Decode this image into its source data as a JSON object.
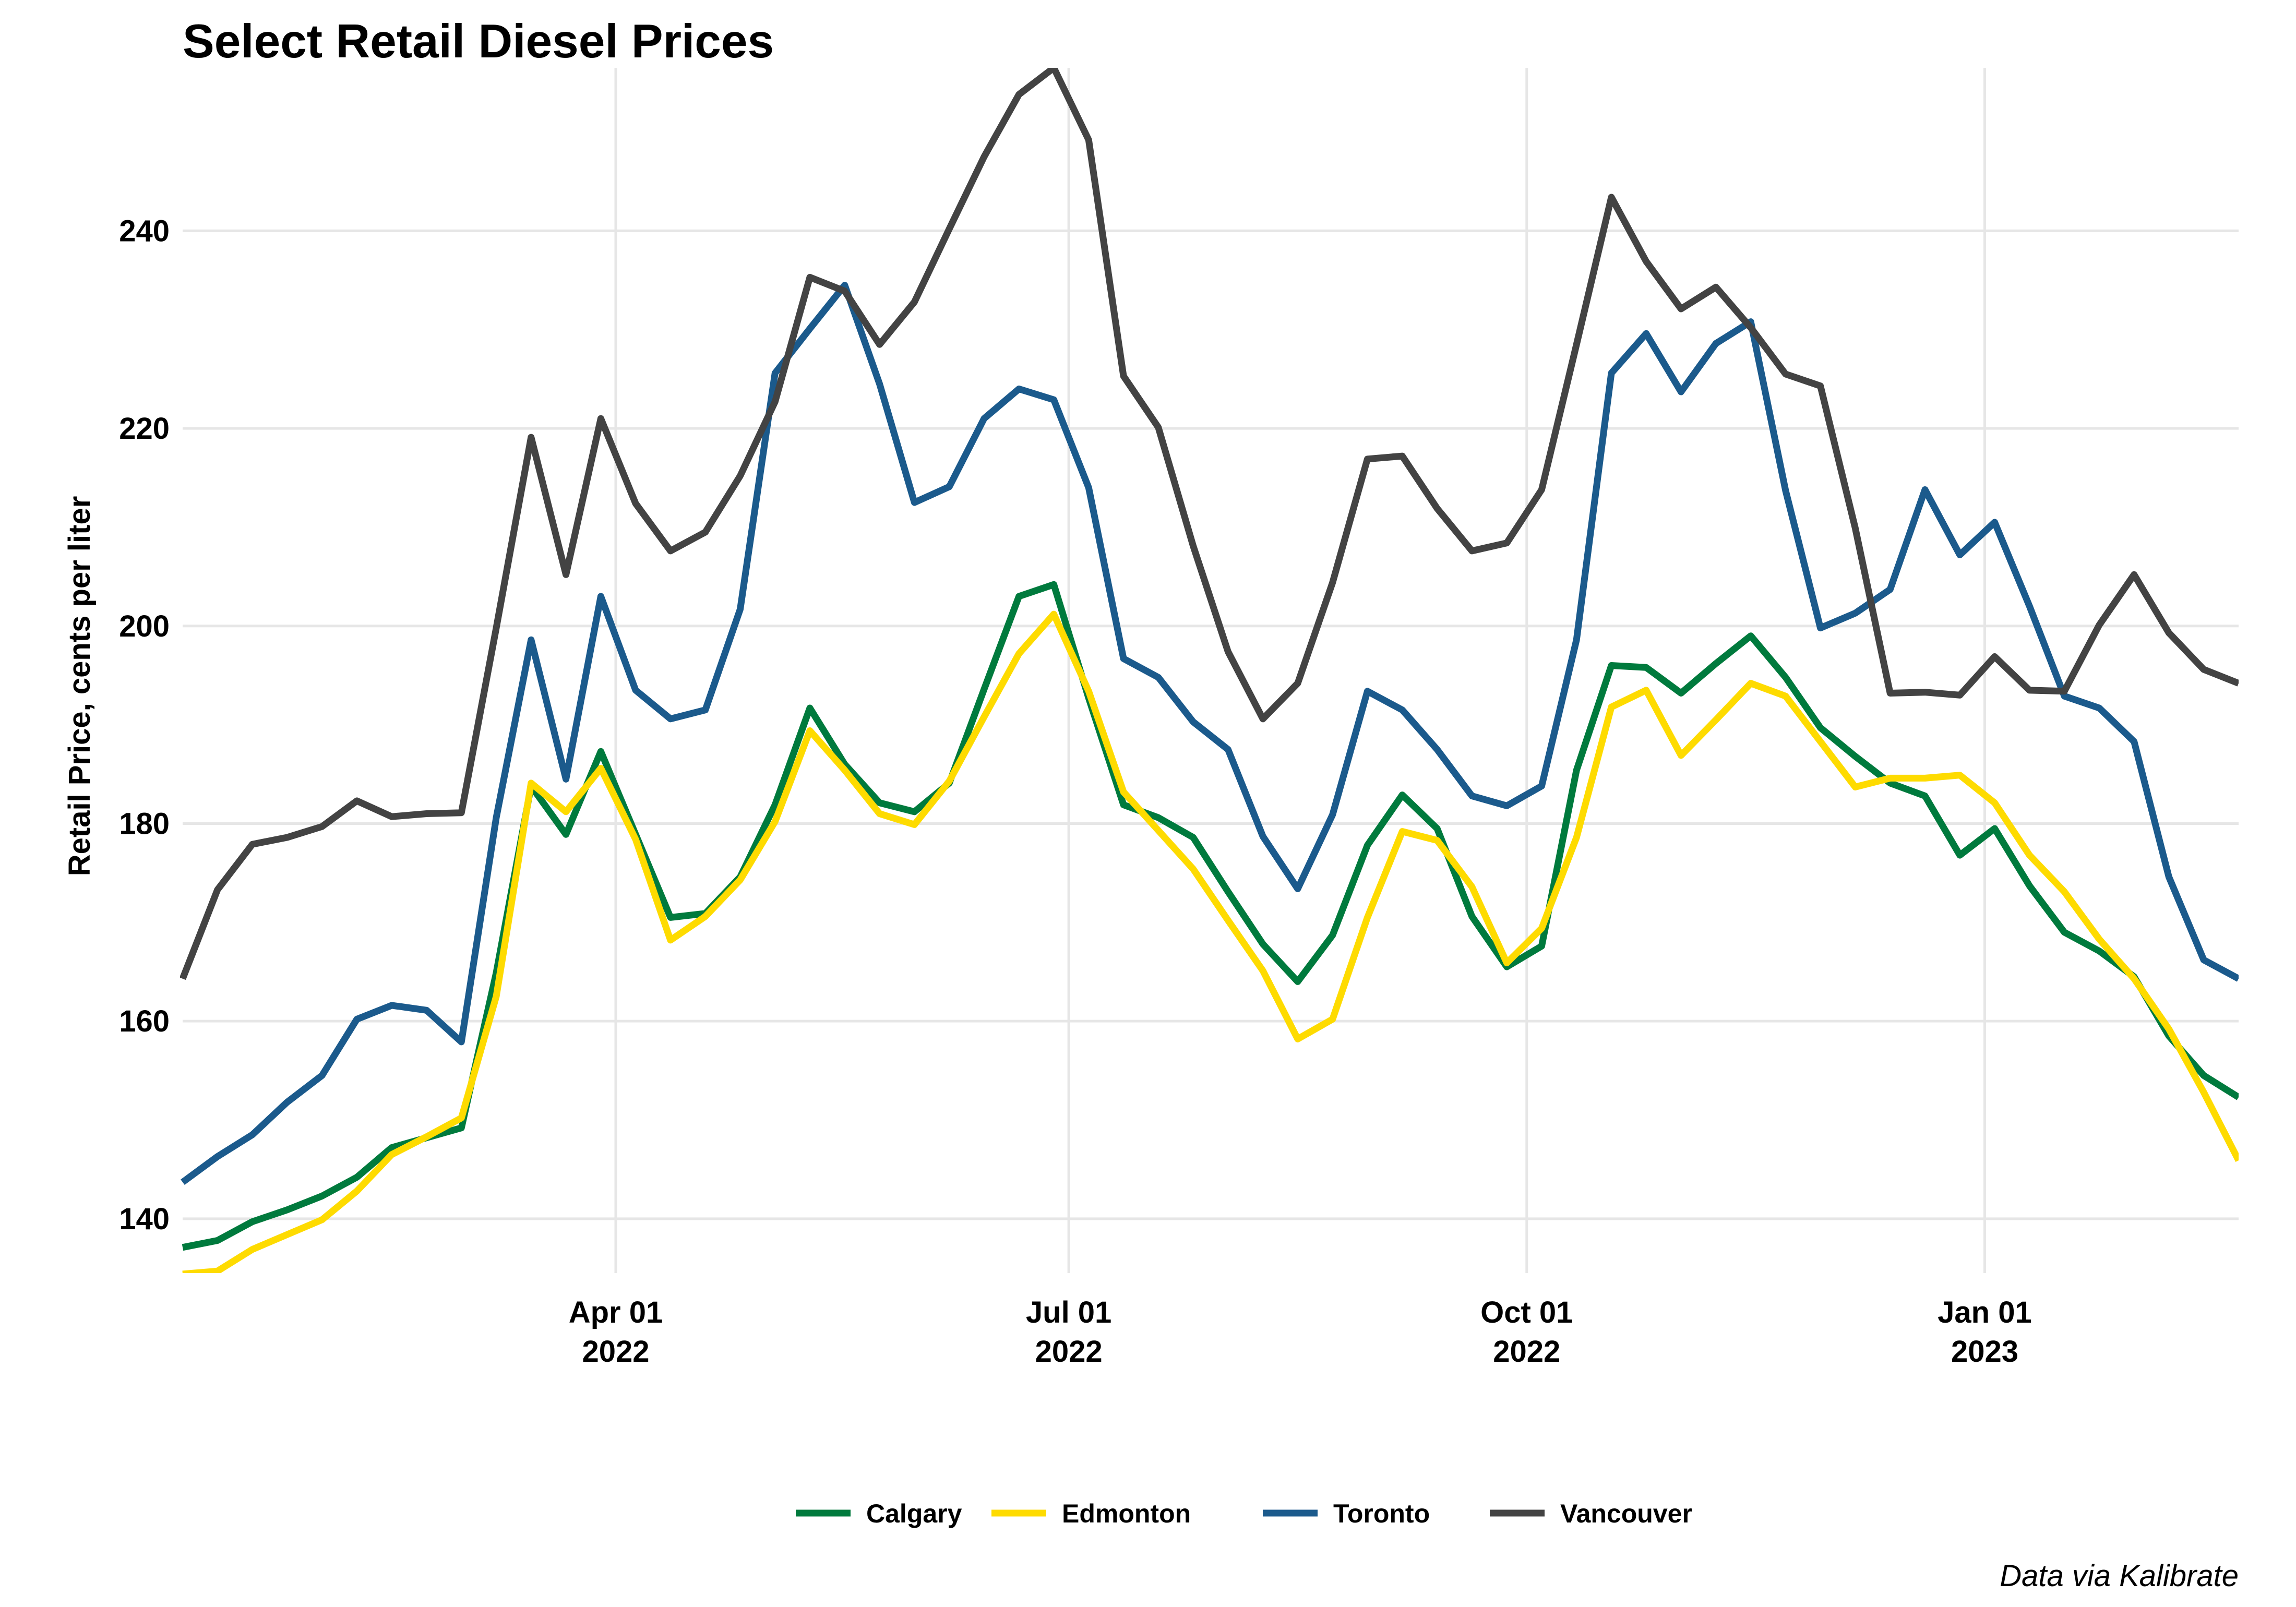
{
  "chart_data": {
    "type": "line",
    "title": "Select Retail Diesel Prices",
    "ylabel": "Retail Price, cents per liter",
    "xlabel": "",
    "caption": "Data via Kalibrate",
    "x_axis_type": "date",
    "xlim": [
      "2022-01-04",
      "2023-02-21"
    ],
    "ylim": [
      134.5,
      256.5
    ],
    "y_ticks": [
      140,
      160,
      180,
      200,
      220,
      240
    ],
    "x_ticks": [
      {
        "date": "2022-04-01",
        "line1": "Apr 01",
        "line2": "2022"
      },
      {
        "date": "2022-07-01",
        "line1": "Jul 01",
        "line2": "2022"
      },
      {
        "date": "2022-10-01",
        "line1": "Oct 01",
        "line2": "2022"
      },
      {
        "date": "2023-01-01",
        "line1": "Jan 01",
        "line2": "2023"
      }
    ],
    "grid": true,
    "legend_position": "bottom",
    "dates": [
      "2022-01-04",
      "2022-01-11",
      "2022-01-18",
      "2022-01-25",
      "2022-02-01",
      "2022-02-08",
      "2022-02-15",
      "2022-02-22",
      "2022-03-01",
      "2022-03-08",
      "2022-03-15",
      "2022-03-22",
      "2022-03-29",
      "2022-04-05",
      "2022-04-12",
      "2022-04-19",
      "2022-04-26",
      "2022-05-03",
      "2022-05-10",
      "2022-05-17",
      "2022-05-24",
      "2022-05-31",
      "2022-06-07",
      "2022-06-14",
      "2022-06-21",
      "2022-06-28",
      "2022-07-05",
      "2022-07-12",
      "2022-07-19",
      "2022-07-26",
      "2022-08-02",
      "2022-08-09",
      "2022-08-16",
      "2022-08-23",
      "2022-08-30",
      "2022-09-06",
      "2022-09-13",
      "2022-09-20",
      "2022-09-27",
      "2022-10-04",
      "2022-10-11",
      "2022-10-18",
      "2022-10-25",
      "2022-11-01",
      "2022-11-08",
      "2022-11-15",
      "2022-11-22",
      "2022-11-29",
      "2022-12-06",
      "2022-12-13",
      "2022-12-20",
      "2022-12-27",
      "2023-01-03",
      "2023-01-10",
      "2023-01-17",
      "2023-01-24",
      "2023-01-31",
      "2023-02-07",
      "2023-02-14",
      "2023-02-21"
    ],
    "series": [
      {
        "name": "Calgary",
        "color": "#007a3d",
        "values": [
          137.1,
          137.8,
          139.7,
          140.9,
          142.3,
          144.2,
          147.2,
          148.2,
          149.2,
          164.9,
          183.8,
          178.9,
          187.3,
          178.9,
          170.5,
          170.9,
          174.6,
          181.9,
          191.7,
          186.0,
          182.1,
          181.2,
          184.1,
          193.6,
          203.0,
          204.2,
          192.7,
          181.9,
          180.6,
          178.6,
          173.1,
          167.8,
          164.0,
          168.7,
          177.8,
          182.9,
          179.5,
          170.6,
          165.5,
          167.6,
          185.4,
          196.0,
          195.8,
          193.2,
          196.2,
          199.0,
          194.8,
          189.7,
          186.8,
          184.1,
          182.8,
          176.8,
          179.5,
          173.7,
          169.0,
          167.1,
          164.5,
          158.5,
          154.5,
          152.3
        ]
      },
      {
        "name": "Edmonton",
        "color": "#fedb00",
        "values": [
          134.4,
          134.7,
          136.9,
          138.4,
          139.9,
          142.8,
          146.5,
          148.3,
          150.2,
          162.5,
          184.1,
          181.2,
          185.6,
          178.4,
          168.2,
          170.6,
          174.3,
          180.2,
          189.4,
          185.4,
          181.0,
          179.9,
          184.3,
          190.8,
          197.2,
          201.2,
          193.4,
          183.2,
          179.3,
          175.4,
          170.2,
          165.1,
          158.2,
          160.2,
          170.5,
          179.2,
          178.3,
          173.6,
          165.9,
          169.4,
          178.6,
          191.8,
          193.5,
          186.9,
          190.5,
          194.2,
          192.9,
          188.3,
          183.7,
          184.6,
          184.6,
          184.9,
          182.1,
          176.8,
          173.1,
          168.3,
          164.3,
          159.2,
          152.8,
          145.9
        ]
      },
      {
        "name": "Toronto",
        "color": "#1b5a8c",
        "values": [
          143.7,
          146.3,
          148.5,
          151.8,
          154.5,
          160.2,
          161.6,
          161.1,
          157.9,
          180.6,
          198.6,
          184.5,
          203.0,
          193.5,
          190.6,
          191.5,
          201.7,
          225.6,
          230.1,
          234.5,
          224.5,
          212.5,
          214.1,
          221.0,
          224.0,
          222.9,
          214.0,
          196.7,
          194.8,
          190.3,
          187.5,
          178.7,
          173.4,
          180.9,
          193.4,
          191.5,
          187.5,
          182.8,
          181.8,
          183.8,
          198.6,
          225.6,
          229.6,
          223.7,
          228.6,
          230.8,
          213.7,
          199.8,
          201.3,
          203.7,
          213.8,
          207.2,
          210.5,
          202.0,
          192.9,
          191.7,
          188.3,
          174.6,
          166.2,
          164.3
        ]
      },
      {
        "name": "Vancouver",
        "color": "#434343",
        "values": [
          164.3,
          173.3,
          177.9,
          178.6,
          179.7,
          182.3,
          180.7,
          181.0,
          181.1,
          199.8,
          219.1,
          205.2,
          221.0,
          212.4,
          207.6,
          209.5,
          215.2,
          222.7,
          235.3,
          233.9,
          228.5,
          232.8,
          240.2,
          247.5,
          253.8,
          256.5,
          249.2,
          225.3,
          220.1,
          208.1,
          197.4,
          190.6,
          194.2,
          204.4,
          216.9,
          217.2,
          211.9,
          207.6,
          208.4,
          213.8,
          228.5,
          243.4,
          236.9,
          232.1,
          234.3,
          230.2,
          225.5,
          224.3,
          209.9,
          193.2,
          193.3,
          193.0,
          196.9,
          193.5,
          193.4,
          200.1,
          205.2,
          199.3,
          195.6,
          194.2
        ]
      }
    ]
  }
}
